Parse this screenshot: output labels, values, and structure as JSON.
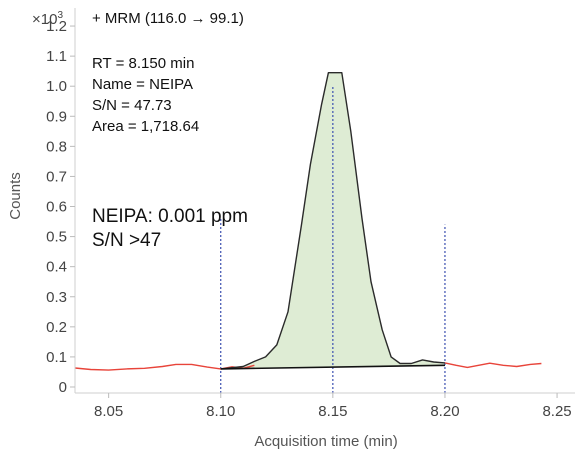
{
  "chart_data": {
    "type": "line",
    "title": "+ MRM (116.0 → 99.1)",
    "xlabel": "Acquisition time (min)",
    "ylabel": "Counts",
    "y_multiplier_label": "×10",
    "y_multiplier_exponent": "3",
    "xlim": [
      8.035,
      8.258
    ],
    "ylim": [
      -0.02,
      1.26
    ],
    "x_ticks": [
      8.05,
      8.1,
      8.15,
      8.2,
      8.25
    ],
    "x_tick_labels": [
      "8.05",
      "8.10",
      "8.15",
      "8.20",
      "8.25"
    ],
    "y_ticks": [
      0,
      0.1,
      0.2,
      0.3,
      0.4,
      0.5,
      0.6,
      0.7,
      0.8,
      0.9,
      1.0,
      1.1,
      1.2
    ],
    "y_tick_labels": [
      "0",
      "0.1",
      "0.2",
      "0.3",
      "0.4",
      "0.5",
      "0.6",
      "0.7",
      "0.8",
      "0.9",
      "1.0",
      "1.1",
      "1.2"
    ],
    "grid": false,
    "legend": "none",
    "info_lines": [
      "RT = 8.150 min",
      "Name = NEIPA",
      "S/N = 47.73",
      "Area = 1,718.64"
    ],
    "annotation_lines": [
      "NEIPA: 0.001 ppm",
      "S/N >47"
    ],
    "series": [
      {
        "style": "trace",
        "color": "#e8443a",
        "x": [
          8.035,
          8.042,
          8.05,
          8.058,
          8.066,
          8.074,
          8.08,
          8.087,
          8.094,
          8.1,
          8.105,
          8.11,
          8.115
        ],
        "y": [
          0.063,
          0.058,
          0.056,
          0.06,
          0.062,
          0.068,
          0.075,
          0.075,
          0.066,
          0.06,
          0.067,
          0.062,
          0.072
        ]
      },
      {
        "style": "integrated-peak",
        "color": "#2b2b2b",
        "fill": "#deecd4",
        "x": [
          8.1,
          8.11,
          8.115,
          8.12,
          8.125,
          8.13,
          8.136,
          8.14,
          8.145,
          8.148,
          8.151,
          8.154,
          8.158,
          8.163,
          8.167,
          8.172,
          8.176,
          8.18,
          8.185,
          8.19,
          8.195,
          8.2
        ],
        "y": [
          0.06,
          0.068,
          0.085,
          0.1,
          0.14,
          0.25,
          0.54,
          0.74,
          0.94,
          1.045,
          1.045,
          1.045,
          0.85,
          0.56,
          0.35,
          0.19,
          0.1,
          0.078,
          0.078,
          0.09,
          0.083,
          0.08
        ]
      },
      {
        "style": "trace",
        "color": "#e8443a",
        "x": [
          8.2,
          8.205,
          8.21,
          8.215,
          8.22,
          8.226,
          8.232,
          8.238,
          8.243
        ],
        "y": [
          0.08,
          0.072,
          0.065,
          0.072,
          0.079,
          0.072,
          0.068,
          0.075,
          0.078
        ]
      },
      {
        "style": "baseline",
        "color": "#111111",
        "x": [
          8.1,
          8.2
        ],
        "y": [
          0.06,
          0.072
        ]
      }
    ],
    "markers": [
      {
        "x": 8.1,
        "y_top": 0.56,
        "color": "#3a4fb0"
      },
      {
        "x": 8.15,
        "y_top": 1.0,
        "color": "#3a4fb0"
      },
      {
        "x": 8.2,
        "y_top": 0.54,
        "color": "#3a4fb0"
      }
    ]
  }
}
